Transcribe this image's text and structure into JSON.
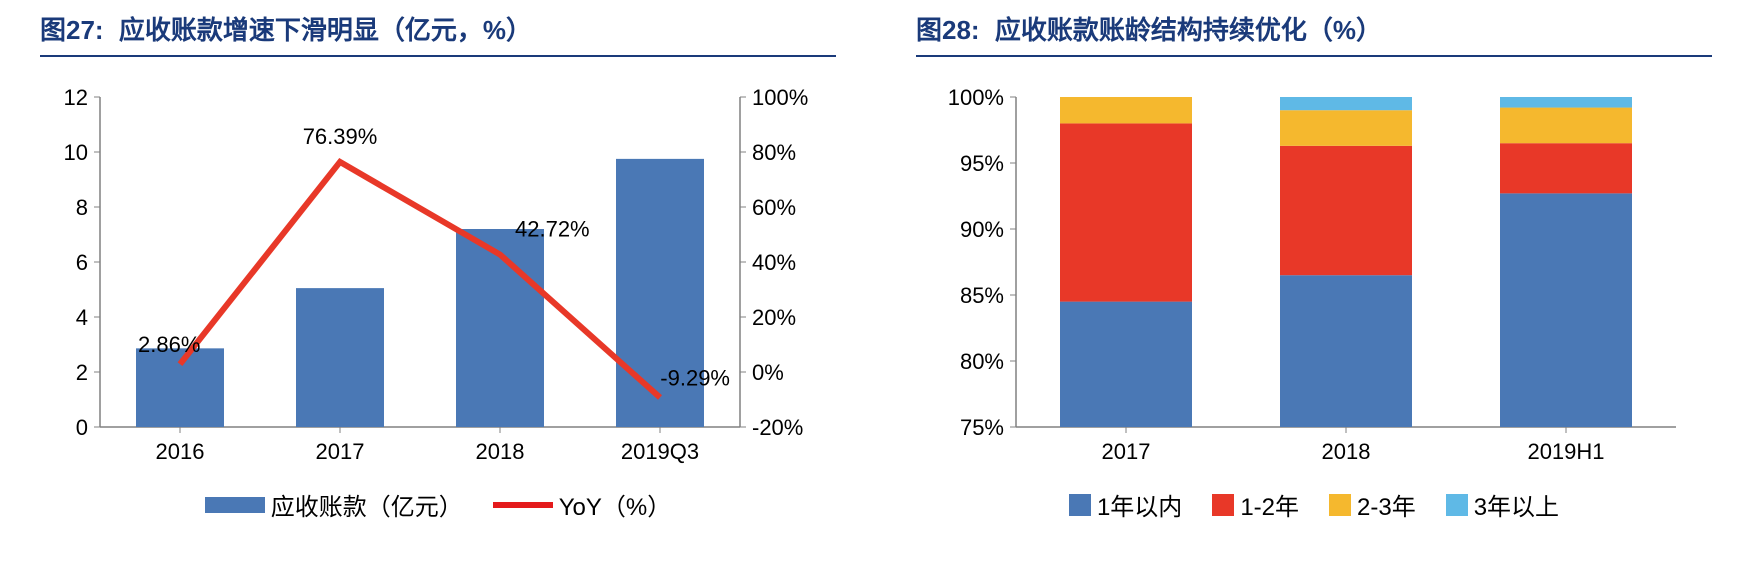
{
  "left": {
    "title_label": "图27:",
    "title_text": "应收账款增速下滑明显（亿元，%）",
    "type": "bar+line",
    "categories": [
      "2016",
      "2017",
      "2018",
      "2019Q3"
    ],
    "bar_values": [
      2.86,
      5.05,
      7.2,
      9.75
    ],
    "bar_color": "#4a78b5",
    "line_values": [
      2.86,
      76.39,
      42.72,
      -9.29
    ],
    "line_color": "#e83828",
    "data_labels": [
      "2.86%",
      "76.39%",
      "42.72%",
      "-9.29%"
    ],
    "y_left": {
      "min": 0,
      "max": 12,
      "step": 2
    },
    "y_right": {
      "min": -20,
      "max": 100,
      "step": 20
    },
    "legend_bar": "应收账款（亿元）",
    "legend_line": "YoY（%）",
    "axis_color": "#808080",
    "tick_color": "#808080",
    "text_color": "#000000",
    "label_fontsize": 22
  },
  "right": {
    "title_label": "图28:",
    "title_text": "应收账款账龄结构持续优化（%）",
    "type": "stacked-bar",
    "categories": [
      "2017",
      "2018",
      "2019H1"
    ],
    "series": [
      {
        "name": "1年以内",
        "color": "#4a78b5",
        "values": [
          84.5,
          86.5,
          92.7
        ]
      },
      {
        "name": "1-2年",
        "color": "#e83828",
        "values": [
          13.5,
          9.8,
          3.8
        ]
      },
      {
        "name": "2-3年",
        "color": "#f5b82e",
        "values": [
          2.0,
          2.7,
          2.7
        ]
      },
      {
        "name": "3年以上",
        "color": "#5fb9e6",
        "values": [
          0.0,
          1.0,
          0.8
        ]
      }
    ],
    "y": {
      "min": 75,
      "max": 100,
      "step": 5
    },
    "y_labels": [
      "75%",
      "80%",
      "85%",
      "90%",
      "95%",
      "100%"
    ],
    "axis_color": "#808080",
    "label_fontsize": 22
  }
}
